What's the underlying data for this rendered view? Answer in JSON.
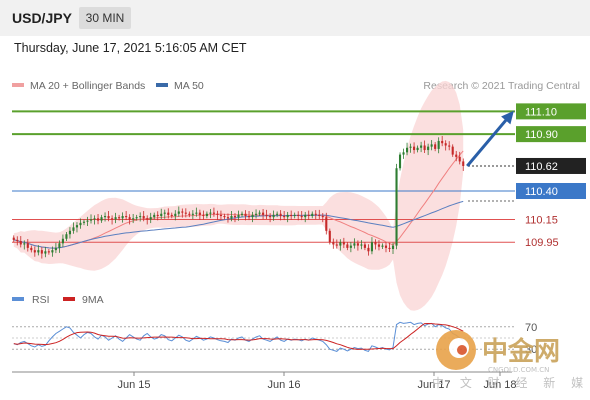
{
  "header": {
    "symbol": "USD/JPY",
    "timeframe": "30 MIN"
  },
  "datetime": "Thursday, June 17, 2021 5:16:05 AM CET",
  "legend": [
    {
      "label": "MA 20 + Bollinger Bands",
      "color": "#f0a0a0"
    },
    {
      "label": "MA 50",
      "color": "#3a6aa8"
    }
  ],
  "credit": "Research © 2021 Trading Central",
  "colors": {
    "candle_up": "#2e7d32",
    "candle_down": "#c62828",
    "bollinger_fill": "#fad4d4",
    "ma20": "#f08080",
    "ma50": "#5a7fc0",
    "target_green": "#5aa02c",
    "resistance_blue": "#3b78c8",
    "support_red": "#e05050",
    "arrow": "#2a5fa8",
    "rsi": "#5b8fd6",
    "rsi_ma": "#cc2222"
  },
  "chart_data": [
    {
      "type": "candlestick",
      "title": "",
      "ylim": [
        109.6,
        111.2
      ],
      "levels": [
        {
          "value": 111.1,
          "label": "111.10",
          "kind": "target"
        },
        {
          "value": 110.9,
          "label": "110.90",
          "kind": "target"
        },
        {
          "value": 110.62,
          "label": "110.62",
          "kind": "current"
        },
        {
          "value": 110.4,
          "label": "110.40",
          "kind": "pivot"
        },
        {
          "value": 110.15,
          "label": "110.15",
          "kind": "support"
        },
        {
          "value": 109.95,
          "label": "109.95",
          "kind": "support"
        }
      ],
      "x_ticks": [
        "Jun 15",
        "Jun 16",
        "Jun 17",
        "Jun 18"
      ],
      "close": [
        109.97,
        109.96,
        109.93,
        109.94,
        109.9,
        109.88,
        109.86,
        109.88,
        109.85,
        109.87,
        109.86,
        109.88,
        109.9,
        109.94,
        109.98,
        110.02,
        110.05,
        110.08,
        110.1,
        110.12,
        110.13,
        110.14,
        110.15,
        110.16,
        110.14,
        110.17,
        110.18,
        110.16,
        110.15,
        110.17,
        110.16,
        110.18,
        110.17,
        110.15,
        110.16,
        110.17,
        110.18,
        110.16,
        110.15,
        110.17,
        110.19,
        110.18,
        110.2,
        110.21,
        110.19,
        110.18,
        110.2,
        110.22,
        110.21,
        110.2,
        110.19,
        110.2,
        110.21,
        110.19,
        110.18,
        110.2,
        110.21,
        110.2,
        110.19,
        110.18,
        110.17,
        110.16,
        110.18,
        110.17,
        110.19,
        110.2,
        110.18,
        110.17,
        110.19,
        110.2,
        110.21,
        110.19,
        110.18,
        110.17,
        110.19,
        110.2,
        110.18,
        110.17,
        110.19,
        110.18,
        110.19,
        110.18,
        110.17,
        110.19,
        110.18,
        110.2,
        110.19,
        110.18,
        110.17,
        110.05,
        109.95,
        109.93,
        109.92,
        109.95,
        109.93,
        109.9,
        109.92,
        109.94,
        109.92,
        109.93,
        109.9,
        109.87,
        109.95,
        109.93,
        109.91,
        109.92,
        109.9,
        109.89,
        109.92,
        110.6,
        110.72,
        110.74,
        110.78,
        110.79,
        110.76,
        110.78,
        110.8,
        110.76,
        110.79,
        110.81,
        110.77,
        110.84,
        110.82,
        110.8,
        110.79,
        110.72,
        110.7,
        110.66,
        110.62
      ],
      "rsi": {
        "name": "RSI",
        "levels": [
          70,
          30
        ],
        "values": [
          40,
          38,
          42,
          44,
          40,
          36,
          34,
          38,
          35,
          37,
          45,
          52,
          58,
          62,
          66,
          70,
          68,
          60,
          55,
          50,
          56,
          60,
          58,
          52,
          48,
          55,
          52,
          46,
          50,
          54,
          48,
          44,
          50,
          56,
          52,
          48,
          46,
          54,
          58,
          52,
          48,
          50,
          56,
          54,
          47,
          45,
          50,
          55,
          52,
          46,
          44,
          48,
          53,
          50,
          46,
          48,
          52,
          50,
          47,
          45,
          44,
          42,
          48,
          46,
          50,
          52,
          46,
          44,
          48,
          52,
          54,
          48,
          46,
          44,
          48,
          52,
          46,
          44,
          48,
          46,
          48,
          47,
          45,
          48,
          46,
          50,
          48,
          46,
          44,
          38,
          30,
          28,
          26,
          32,
          30,
          27,
          30,
          33,
          31,
          32,
          28,
          26,
          36,
          34,
          31,
          33,
          30,
          29,
          33,
          74,
          78,
          76,
          77,
          78,
          74,
          76,
          77,
          72,
          75,
          76,
          70,
          74,
          72,
          68,
          66,
          58,
          55,
          50,
          46
        ]
      },
      "rsi_ma": {
        "name": "9MA"
      }
    }
  ]
}
